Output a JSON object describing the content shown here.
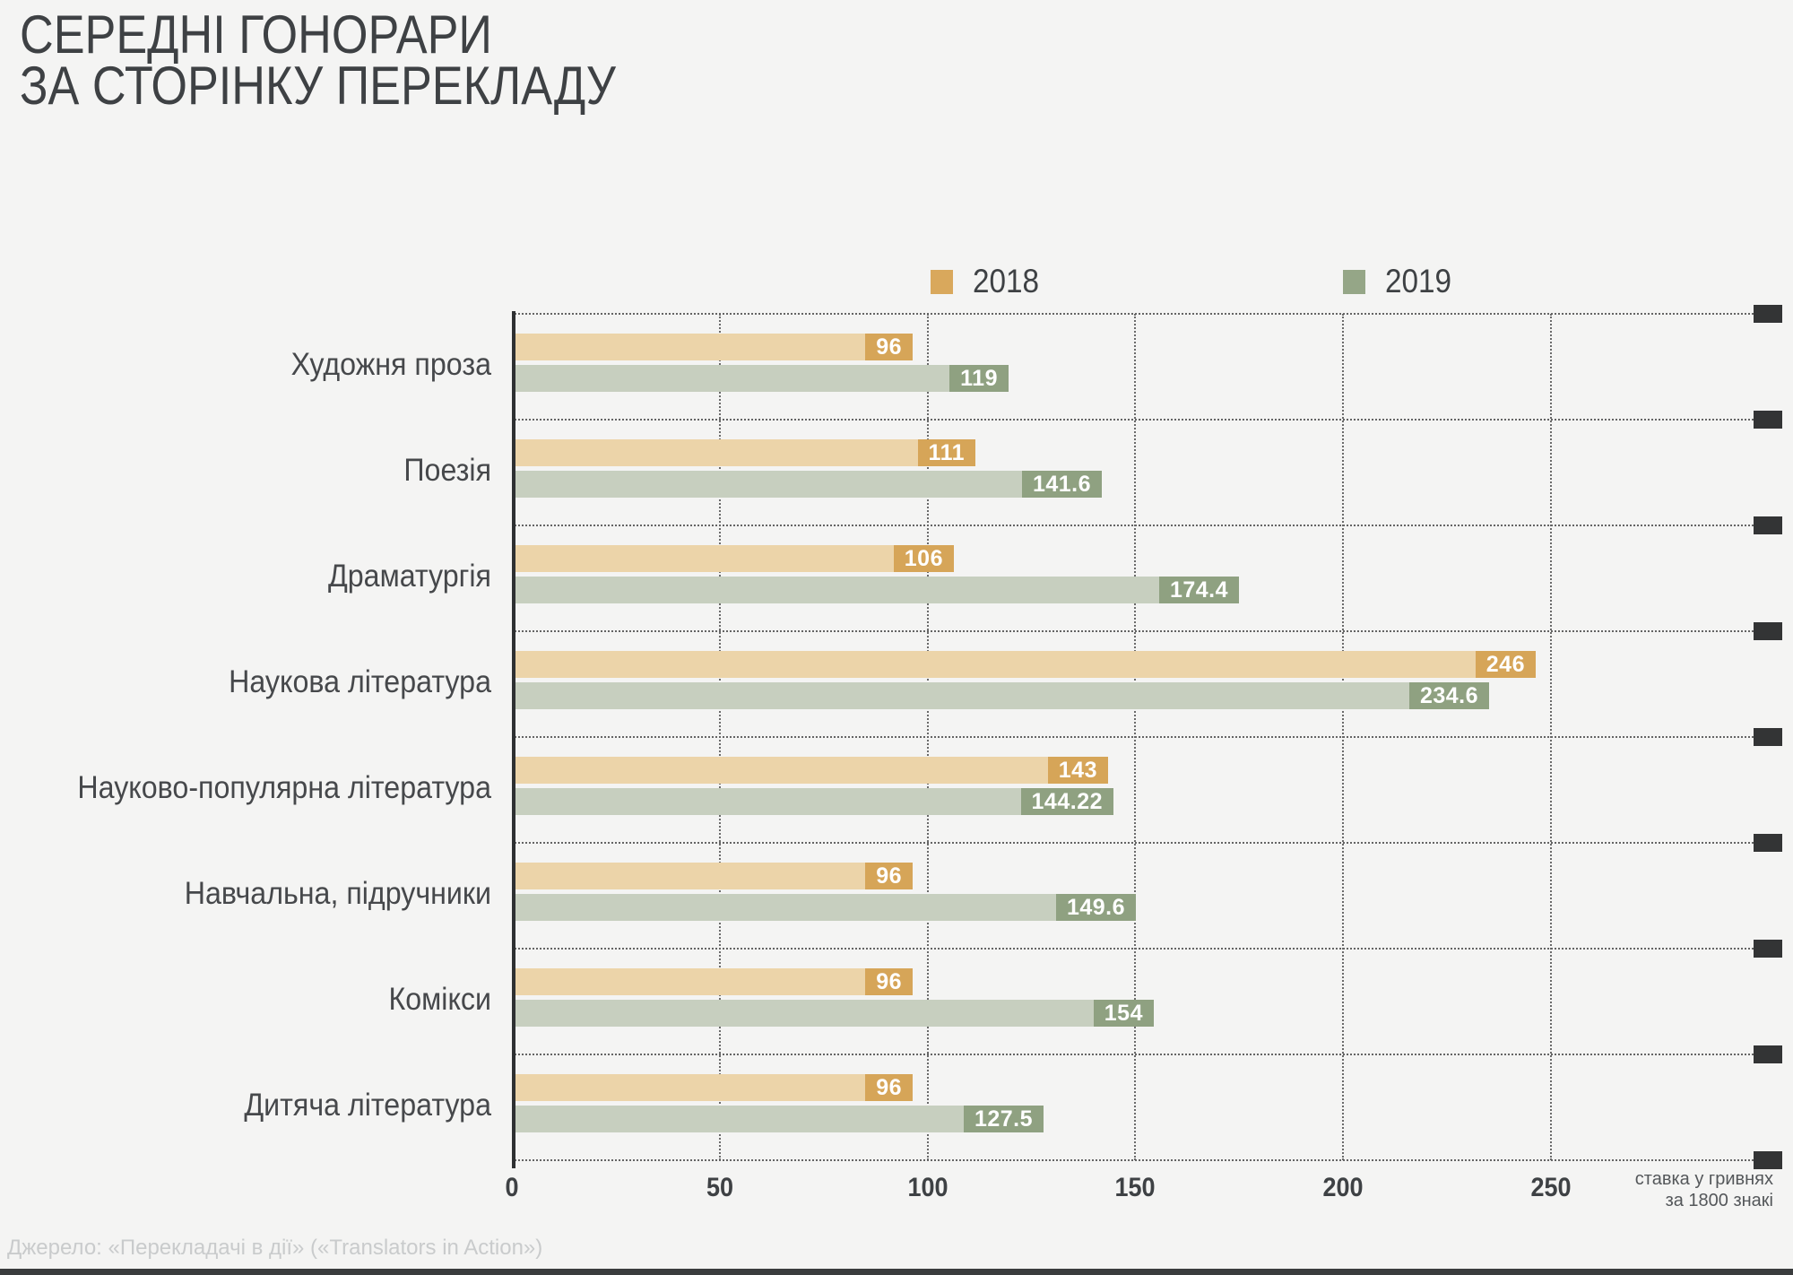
{
  "title": {
    "line1": "СЕРЕДНІ ГОНОРАРИ",
    "line2": "ЗА СТОРІНКУ ПЕРЕКЛАДУ"
  },
  "legend": [
    {
      "label": "2018",
      "color": "#d9a85c"
    },
    {
      "label": "2019",
      "color": "#95a687"
    }
  ],
  "colors": {
    "background": "#f4f4f3",
    "bar_2018_light": "#ecd4a9",
    "bar_2018_dark": "#d6a558",
    "bar_2019_light": "#c7cfbf",
    "bar_2019_dark": "#8fa181",
    "axis_line": "#2e3032",
    "grid_dots": "#646464",
    "edge_marker": "#333435"
  },
  "chart_data": {
    "type": "bar",
    "orientation": "horizontal",
    "title": "СЕРЕДНІ ГОНОРАРИ ЗА СТОРІНКУ ПЕРЕКЛАДУ",
    "categories": [
      "Художня проза",
      "Поезія",
      "Драматургія",
      "Наукова література",
      "Науково-популярна література",
      "Навчальна, підручники",
      "Комікси",
      "Дитяча література"
    ],
    "series": [
      {
        "name": "2018",
        "values": [
          96,
          111,
          106,
          246,
          143,
          96,
          96,
          96
        ]
      },
      {
        "name": "2019",
        "values": [
          119,
          141.6,
          174.4,
          234.6,
          144.22,
          149.6,
          154,
          127.5
        ]
      }
    ],
    "xticks": [
      0,
      50,
      100,
      150,
      200,
      250
    ],
    "xlim": [
      0,
      250
    ],
    "grid": "dotted",
    "legend_position": "top",
    "axis_note_line1": "ставка у гривнях",
    "axis_note_line2": "за 1800 знакі"
  },
  "footer": {
    "source": "Джерело: «Перекладачі в дії» («Translators in Action»)"
  }
}
